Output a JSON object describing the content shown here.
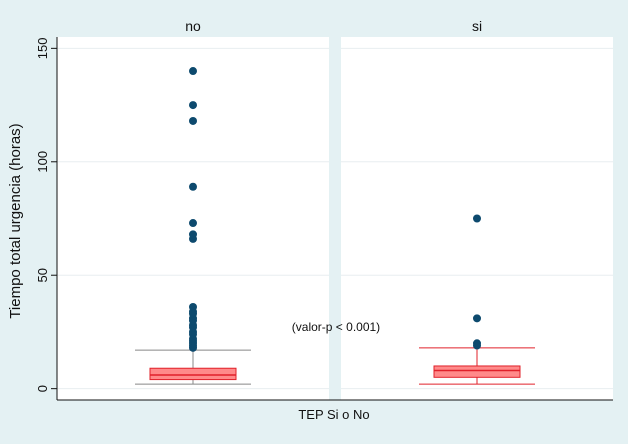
{
  "chart_data": {
    "type": "box",
    "ylabel": "Tiempo total urgencia (horas)",
    "xlabel": "TEP Si o No",
    "annotation": "(valor-p < 0.001)",
    "ylim": [
      -5,
      155
    ],
    "yticks": [
      0,
      50,
      100,
      150
    ],
    "grid": true,
    "colors": {
      "box_fill": "#ff8a8a",
      "box_stroke": "#e0202a",
      "outlier": "#0d4a6e",
      "panel_header": "#e4f1f3"
    },
    "panels": [
      {
        "label": "no",
        "box": {
          "whisker_low": 2,
          "q1": 4,
          "median": 6,
          "q3": 9,
          "whisker_high": 17
        },
        "whisker_color": "#888888",
        "outliers": [
          18,
          19,
          20,
          21,
          22,
          24,
          25,
          27,
          28,
          30,
          31,
          33,
          34,
          36,
          66,
          68,
          73,
          89,
          118,
          125,
          140
        ]
      },
      {
        "label": "si",
        "box": {
          "whisker_low": 2,
          "q1": 5,
          "median": 8,
          "q3": 10,
          "whisker_high": 18
        },
        "whisker_color": "#e0202a",
        "outliers": [
          19,
          20,
          31,
          75
        ]
      }
    ]
  }
}
